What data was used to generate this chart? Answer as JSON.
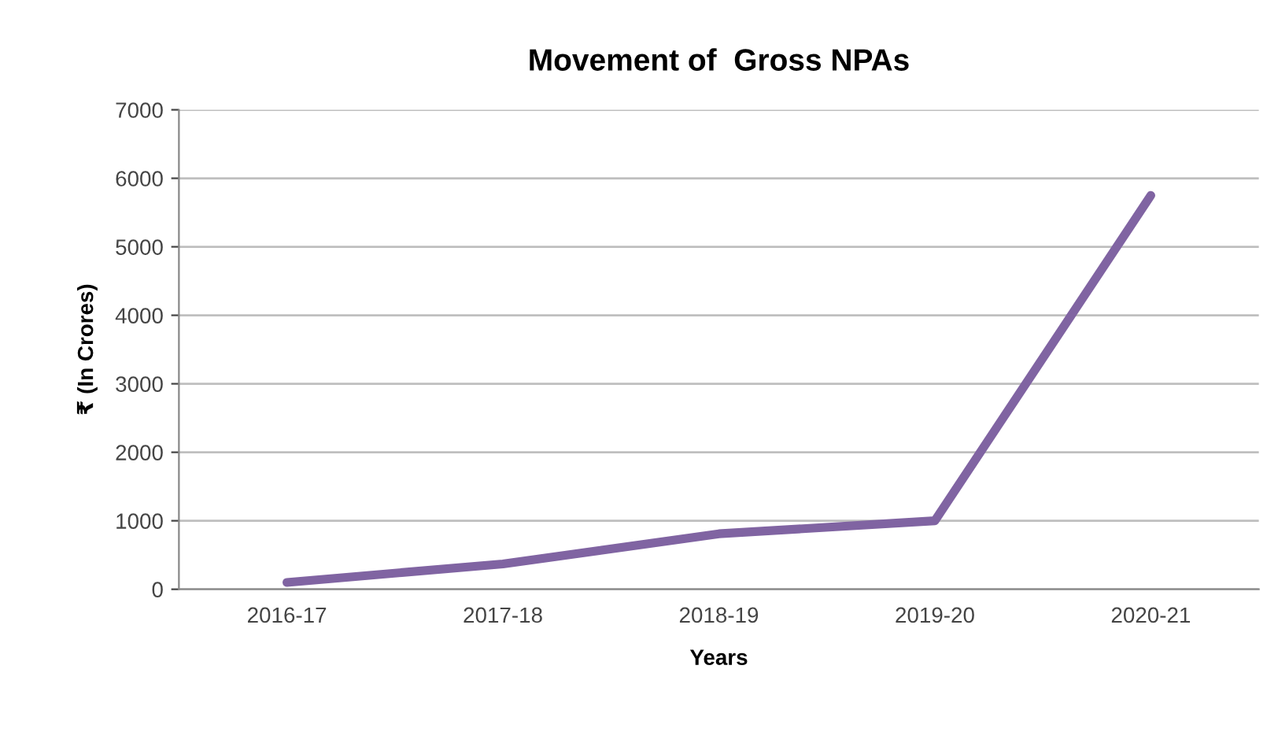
{
  "chart_data": {
    "type": "line",
    "title": "Movement of  Gross NPAs",
    "xlabel": "Years",
    "ylabel": "₹ (In Crores)",
    "categories": [
      "2016-17",
      "2017-18",
      "2018-19",
      "2019-20",
      "2020-21"
    ],
    "series": [
      {
        "color": "#8064a2",
        "values": [
          100,
          370,
          810,
          1000,
          5750
        ]
      }
    ],
    "ylim": [
      0,
      7000
    ],
    "yticks": [
      0,
      1000,
      2000,
      3000,
      4000,
      5000,
      6000,
      7000
    ],
    "grid": "y",
    "marker": "none",
    "line_style": "solid"
  }
}
